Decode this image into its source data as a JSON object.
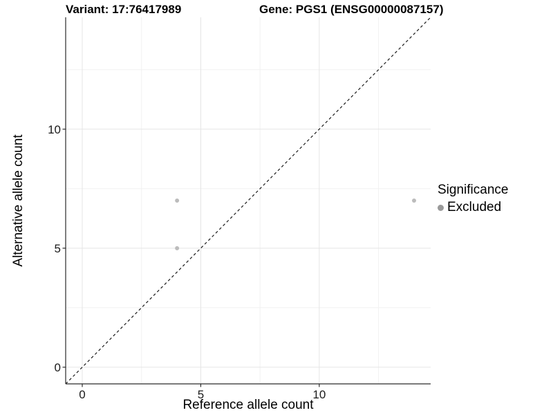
{
  "chart_data": {
    "type": "scatter",
    "title_left": "Variant: 17:76417989",
    "title_right": "Gene: PGS1 (ENSG00000087157)",
    "xlabel": "Reference allele count",
    "ylabel": "Alternative allele count",
    "xlim": [
      -0.7,
      14.7
    ],
    "ylim": [
      -0.7,
      14.7
    ],
    "x_major_ticks": [
      0,
      5,
      10
    ],
    "y_major_ticks": [
      0,
      5,
      10
    ],
    "x_minor_ticks": [
      2.5,
      7.5,
      12.5
    ],
    "y_minor_ticks": [
      2.5,
      7.5,
      12.5
    ],
    "grid": true,
    "identity_line": {
      "style": "dashed",
      "from": -0.7,
      "to": 14.7
    },
    "series": [
      {
        "name": "Excluded",
        "points": [
          {
            "x": 4,
            "y": 5
          },
          {
            "x": 4,
            "y": 7
          },
          {
            "x": 14,
            "y": 7
          }
        ]
      }
    ],
    "legend": {
      "title": "Significance",
      "position": "right",
      "items": [
        {
          "label": "Excluded",
          "color": "#9a9a9a"
        }
      ]
    }
  },
  "colors": {
    "background": "#ffffff",
    "grid_major": "#e5e5e5",
    "grid_minor": "#f1f1f1",
    "axis_line": "#2a2a2a",
    "tick_mark": "#2a2a2a",
    "tick_label": "#1a1a1a",
    "identity_line": "#1a1a1a",
    "point": "#bcbcbc"
  }
}
